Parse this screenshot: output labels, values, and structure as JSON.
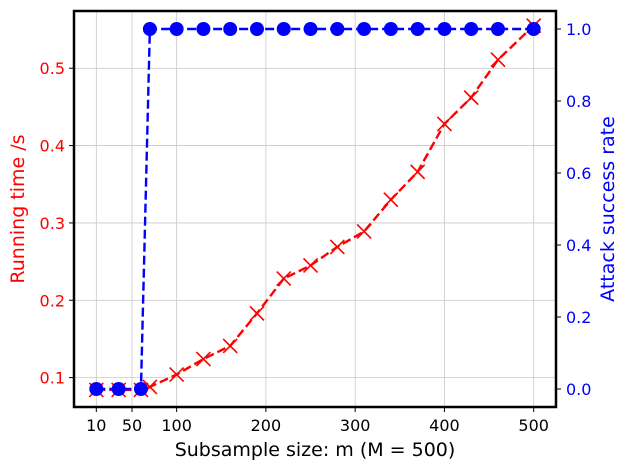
{
  "chart_data": {
    "type": "line",
    "xlabel": "Subsample size: m (M = 500)",
    "ylabel_left": "Running time /s",
    "ylabel_right": "Attack success rate",
    "x_ticks": [
      10,
      50,
      100,
      200,
      300,
      400,
      500
    ],
    "y_left_ticks": [
      0.1,
      0.2,
      0.3,
      0.4,
      0.5
    ],
    "y_right_ticks": [
      "0.0",
      "0.2",
      "0.4",
      "0.6",
      "0.8",
      "1.0"
    ],
    "xlim": [
      -15,
      525
    ],
    "ylim_left": [
      0.062,
      0.574
    ],
    "ylim_right": [
      -0.05,
      1.05
    ],
    "grid": true,
    "colors": {
      "running_time": "#ff0000",
      "success_rate": "#0000ff"
    },
    "series": [
      {
        "axis": "left",
        "marker": "x",
        "x": [
          10,
          35,
          60,
          70,
          100,
          130,
          160,
          190,
          220,
          250,
          280,
          310,
          340,
          370,
          400,
          430,
          460,
          500
        ],
        "values": [
          0.084,
          0.084,
          0.084,
          0.088,
          0.104,
          0.124,
          0.141,
          0.183,
          0.228,
          0.245,
          0.269,
          0.289,
          0.33,
          0.366,
          0.428,
          0.462,
          0.511,
          0.555
        ]
      },
      {
        "axis": "right",
        "marker": "circle",
        "x": [
          10,
          35,
          60,
          70,
          100,
          130,
          160,
          190,
          220,
          250,
          280,
          310,
          340,
          370,
          400,
          430,
          460,
          500
        ],
        "values": [
          0,
          0,
          0,
          1,
          1,
          1,
          1,
          1,
          1,
          1,
          1,
          1,
          1,
          1,
          1,
          1,
          1,
          1
        ]
      }
    ]
  }
}
